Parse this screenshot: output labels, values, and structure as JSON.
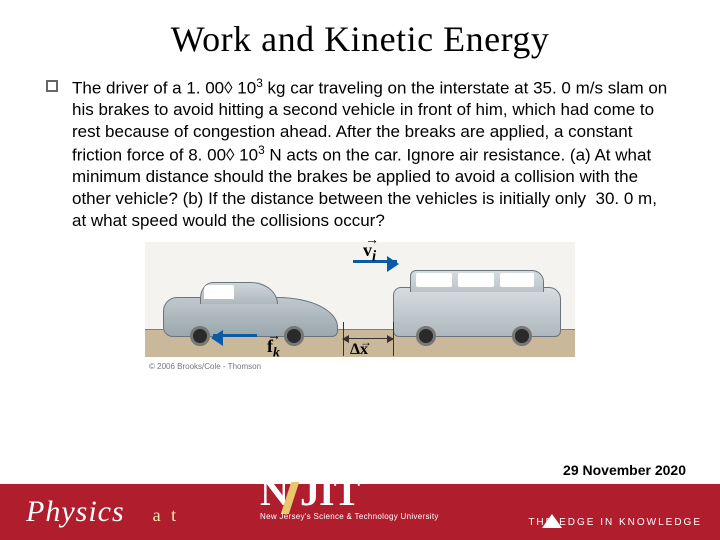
{
  "title": "Work and Kinetic Energy",
  "bullet_text": "The driver of a 1. 00◊ 10³ kg car traveling on the interstate at 35. 0 m/s slam on his brakes to avoid hitting a second vehicle in front of him, which had come to rest because of congestion ahead. After the breaks are applied, a constant friction force of 8. 00◊ 10³ N acts on the car. Ignore air resistance. (a) At what minimum distance should the brakes be applied to avoid a collision with the other vehicle? (b) If the distance between the vehicles is initially only  30. 0 m, at what speed would the collisions occur?",
  "figure": {
    "vi_label": "v",
    "vi_sub": "i",
    "fk_label": "f",
    "fk_sub": "k",
    "dx_prefix": "Δ",
    "dx_var": "x",
    "credit": "© 2006 Brooks/Cole - Thomson",
    "colors": {
      "road": "#c9b89a",
      "vector": "#0a5aa8",
      "car": "#aeb8bd",
      "bg": "#f4f3ef"
    }
  },
  "footer": {
    "brand": "Physics",
    "at": "a t",
    "njit": {
      "n": "N",
      "jit": "JIT",
      "subtitle": "New Jersey's Science & Technology University"
    },
    "tagline": "THE EDGE IN KNOWLEDGE",
    "background": "#b01e2e"
  },
  "date": "29 November 2020"
}
